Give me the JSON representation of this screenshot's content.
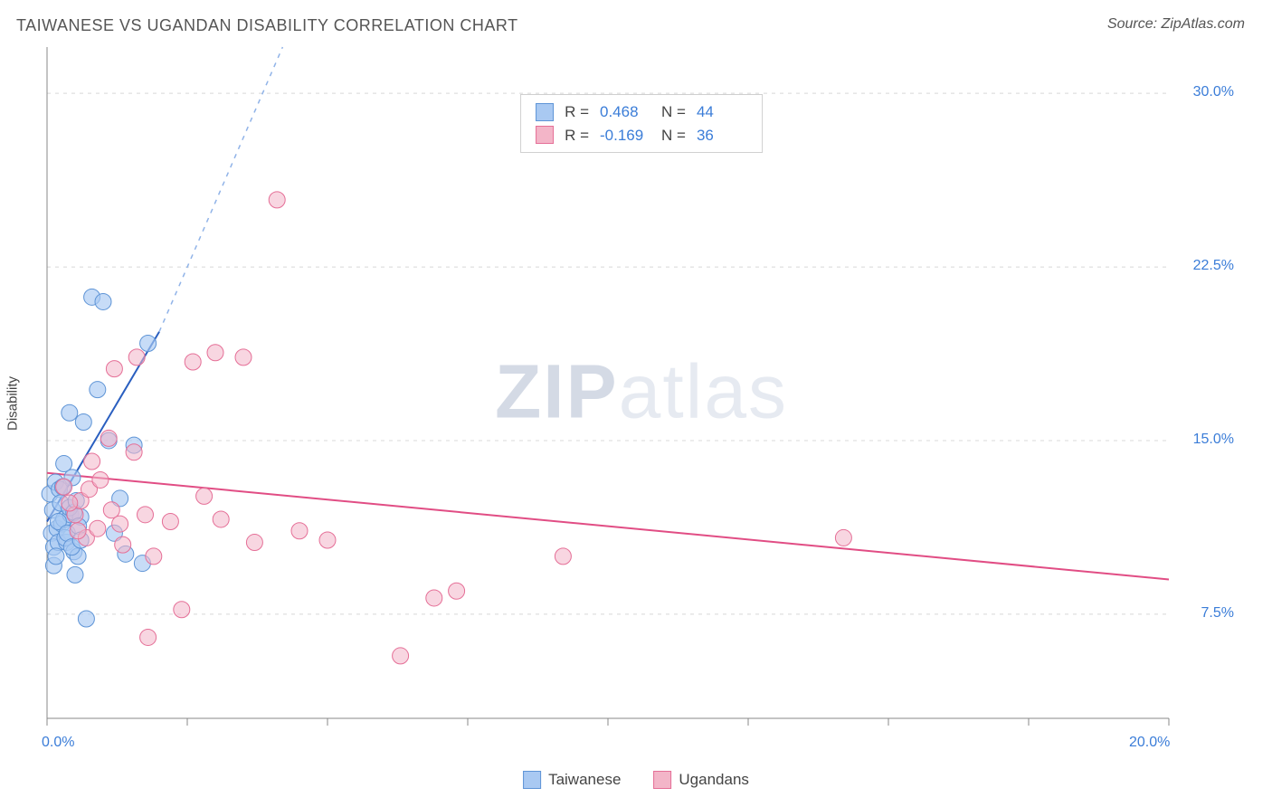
{
  "title": "TAIWANESE VS UGANDAN DISABILITY CORRELATION CHART",
  "source": "Source: ZipAtlas.com",
  "watermark_bold": "ZIP",
  "watermark_light": "atlas",
  "chart": {
    "type": "scatter",
    "y_label": "Disability",
    "xlim": [
      0,
      20
    ],
    "ylim": [
      3,
      32
    ],
    "x_ticks": [
      0,
      2.5,
      5,
      7.5,
      10,
      12.5,
      15,
      17.5,
      20
    ],
    "y_ticks": [
      7.5,
      15,
      22.5,
      30
    ],
    "x_tick_labels": [
      "0.0%",
      "",
      "",
      "",
      "",
      "",
      "",
      "",
      "20.0%"
    ],
    "y_tick_labels": [
      "7.5%",
      "15.0%",
      "22.5%",
      "30.0%"
    ],
    "background_color": "#ffffff",
    "grid_color": "#d8d8d8",
    "axis_color": "#888888",
    "tick_label_color": "#3b7dd8",
    "marker_radius": 9,
    "series": [
      {
        "name": "Taiwanese",
        "fill": "#a9c9f2",
        "stroke": "#5e94d6",
        "fill_opacity": 0.65,
        "R": 0.468,
        "N": 44,
        "trend": {
          "x1": 0.0,
          "y1": 11.5,
          "x2": 2.0,
          "y2": 19.7,
          "color": "#2a5fc0",
          "width": 2
        },
        "trend_dash": {
          "x1": 2.0,
          "y1": 19.7,
          "x2": 4.2,
          "y2": 32,
          "color": "#90b3e8",
          "width": 1.5,
          "dash": "5,6"
        },
        "points": [
          [
            0.05,
            12.7
          ],
          [
            0.08,
            11.0
          ],
          [
            0.1,
            12.0
          ],
          [
            0.12,
            10.4
          ],
          [
            0.15,
            13.2
          ],
          [
            0.18,
            11.2
          ],
          [
            0.2,
            10.6
          ],
          [
            0.22,
            12.9
          ],
          [
            0.26,
            11.4
          ],
          [
            0.3,
            14.0
          ],
          [
            0.3,
            11.6
          ],
          [
            0.35,
            10.6
          ],
          [
            0.4,
            16.2
          ],
          [
            0.42,
            11.8
          ],
          [
            0.45,
            13.4
          ],
          [
            0.48,
            10.2
          ],
          [
            0.5,
            9.2
          ],
          [
            0.55,
            10.0
          ],
          [
            0.6,
            11.7
          ],
          [
            0.65,
            15.8
          ],
          [
            0.7,
            7.3
          ],
          [
            0.8,
            21.2
          ],
          [
            0.9,
            17.2
          ],
          [
            1.0,
            21.0
          ],
          [
            1.1,
            15.0
          ],
          [
            1.2,
            11.0
          ],
          [
            1.3,
            12.5
          ],
          [
            1.4,
            10.1
          ],
          [
            1.55,
            14.8
          ],
          [
            1.7,
            9.7
          ],
          [
            1.8,
            19.2
          ],
          [
            0.12,
            9.6
          ],
          [
            0.16,
            10.0
          ],
          [
            0.2,
            11.5
          ],
          [
            0.24,
            12.3
          ],
          [
            0.28,
            13.0
          ],
          [
            0.32,
            10.8
          ],
          [
            0.36,
            11.0
          ],
          [
            0.4,
            12.1
          ],
          [
            0.44,
            10.4
          ],
          [
            0.48,
            11.9
          ],
          [
            0.52,
            12.4
          ],
          [
            0.56,
            11.3
          ],
          [
            0.6,
            10.7
          ]
        ]
      },
      {
        "name": "Ugandans",
        "fill": "#f3b5c8",
        "stroke": "#e56f97",
        "fill_opacity": 0.55,
        "R": -0.169,
        "N": 36,
        "trend": {
          "x1": 0.0,
          "y1": 13.6,
          "x2": 20.0,
          "y2": 9.0,
          "color": "#e14d84",
          "width": 2
        },
        "points": [
          [
            0.3,
            13.0
          ],
          [
            0.5,
            11.8
          ],
          [
            0.6,
            12.4
          ],
          [
            0.7,
            10.8
          ],
          [
            0.8,
            14.1
          ],
          [
            0.9,
            11.2
          ],
          [
            1.1,
            15.1
          ],
          [
            1.2,
            18.1
          ],
          [
            1.3,
            11.4
          ],
          [
            1.6,
            18.6
          ],
          [
            1.8,
            6.5
          ],
          [
            1.9,
            10.0
          ],
          [
            2.2,
            11.5
          ],
          [
            2.4,
            7.7
          ],
          [
            2.6,
            18.4
          ],
          [
            2.8,
            12.6
          ],
          [
            3.0,
            18.8
          ],
          [
            3.1,
            11.6
          ],
          [
            3.5,
            18.6
          ],
          [
            3.7,
            10.6
          ],
          [
            4.1,
            25.4
          ],
          [
            4.5,
            11.1
          ],
          [
            5.0,
            10.7
          ],
          [
            6.3,
            5.7
          ],
          [
            6.9,
            8.2
          ],
          [
            7.3,
            8.5
          ],
          [
            9.2,
            10.0
          ],
          [
            14.2,
            10.8
          ],
          [
            0.4,
            12.3
          ],
          [
            0.55,
            11.1
          ],
          [
            0.75,
            12.9
          ],
          [
            0.95,
            13.3
          ],
          [
            1.15,
            12.0
          ],
          [
            1.35,
            10.5
          ],
          [
            1.55,
            14.5
          ],
          [
            1.75,
            11.8
          ]
        ]
      }
    ],
    "legend_top_labels": {
      "R": "R =",
      "N": "N ="
    },
    "legend_bottom": [
      {
        "label": "Taiwanese",
        "fill": "#a9c9f2",
        "stroke": "#5e94d6"
      },
      {
        "label": "Ugandans",
        "fill": "#f3b5c8",
        "stroke": "#e56f97"
      }
    ]
  }
}
